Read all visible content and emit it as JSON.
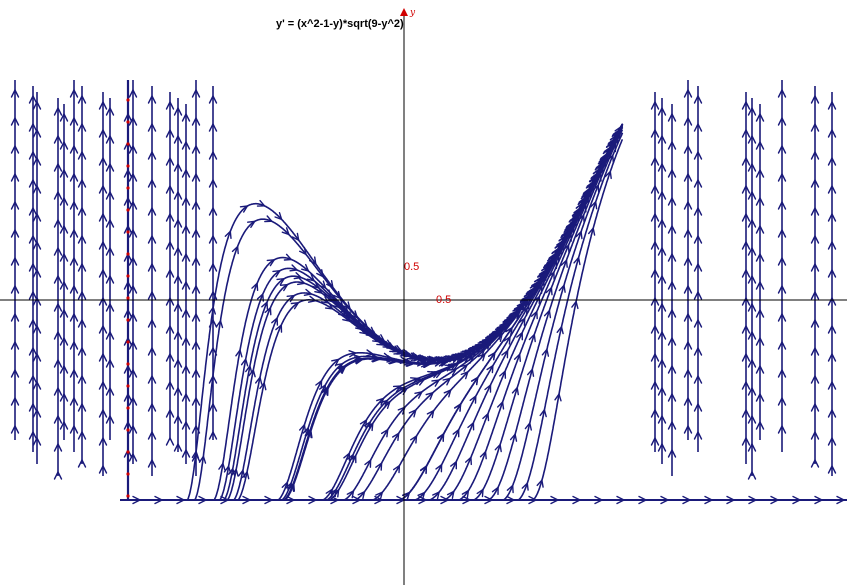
{
  "equation": "y' =  (x^2-1-y)*sqrt(9-y^2)",
  "axis": {
    "y_label": "y",
    "tick_label_y": "0.5",
    "tick_label_x": "0.5"
  },
  "colors": {
    "curve": "#1a1a7a",
    "axis_label": "#d00000",
    "arrow_head": "#1a1a7a"
  },
  "chart_data": {
    "type": "line",
    "title": "y' =  (x^2-1-y)*sqrt(9-y^2)",
    "xlabel": "",
    "ylabel": "y",
    "xlim": [
      -2.35,
      2.35
    ],
    "ylim": [
      -3.0,
      3.6
    ],
    "grid": false,
    "series": [
      {
        "x": -2.2,
        "y0": -2.4
      },
      {
        "x": -2.1,
        "y0": -2.2
      },
      {
        "x": -1.85,
        "y0": -1.9
      },
      {
        "x": -1.75,
        "y0": -1.6
      },
      {
        "x": -1.65,
        "y0": -1.2
      },
      {
        "x": -1.55,
        "y0": -0.8
      },
      {
        "x": -1.42,
        "y0": -0.6
      },
      {
        "x": -1.3,
        "y0": -0.4
      },
      {
        "x": -1.1,
        "y0": -2.5
      },
      {
        "x": -1.0,
        "y0": -2.0
      },
      {
        "x": -0.9,
        "y0": -1.6
      },
      {
        "x": -0.8,
        "y0": -1.2
      },
      {
        "x": -0.7,
        "y0": -0.9
      },
      {
        "x": -0.6,
        "y0": -2.6
      },
      {
        "x": -0.5,
        "y0": -2.2
      },
      {
        "x": -0.4,
        "y0": -1.8
      },
      {
        "x": -0.3,
        "y0": -2.6
      },
      {
        "x": -0.2,
        "y0": -2.0
      },
      {
        "x": -0.1,
        "y0": -2.6
      },
      {
        "x": 0.0,
        "y0": -2.95
      },
      {
        "x": 0.1,
        "y0": -2.8
      },
      {
        "x": 0.2,
        "y0": -2.9
      },
      {
        "x": 0.35,
        "y0": -2.9
      },
      {
        "x": 0.5,
        "y0": -2.9
      },
      {
        "x": 0.65,
        "y0": -2.9
      },
      {
        "x": 0.8,
        "y0": -2.9
      },
      {
        "x": 0.95,
        "y0": -2.9
      },
      {
        "x": 1.1,
        "y0": -2.9
      },
      {
        "x": 1.25,
        "y0": -2.9
      },
      {
        "x": 1.4,
        "y0": -2.9
      }
    ]
  }
}
